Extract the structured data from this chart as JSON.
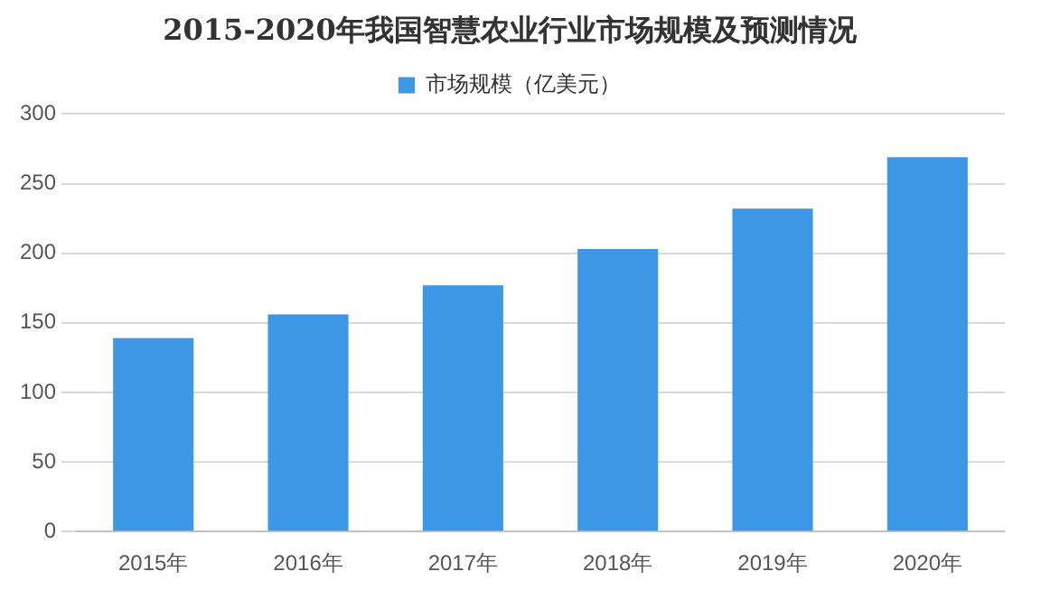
{
  "chart_data": {
    "type": "bar",
    "title": "2015-2020年我国智慧农业行业市场规模及预测情况",
    "categories": [
      "2015年",
      "2016年",
      "2017年",
      "2018年",
      "2019年",
      "2020年"
    ],
    "series": [
      {
        "name": "市场规模（亿美元）",
        "color": "#3d97e6",
        "values": [
          139,
          156,
          177,
          203,
          232,
          269
        ]
      }
    ],
    "ylim": [
      0,
      300
    ],
    "yticks": [
      0,
      50,
      100,
      150,
      200,
      250,
      300
    ],
    "grid": "y",
    "legend": "top"
  }
}
